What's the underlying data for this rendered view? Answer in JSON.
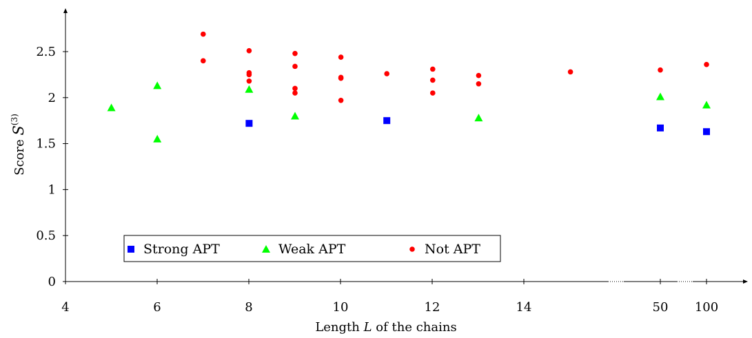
{
  "chart_data": {
    "type": "scatter",
    "xlabel": "Length L of the chains",
    "ylabel": "Score S(3)",
    "ylabel_parts": {
      "prefix": "Score ",
      "symbol": "S",
      "superscript": "(3)"
    },
    "xlabel_parts": {
      "before": "Length ",
      "var": "L",
      "after": " of the chains"
    },
    "xlim": [
      4,
      100
    ],
    "ylim": [
      0,
      2.8
    ],
    "x_ticks": [
      "4",
      "6",
      "8",
      "10",
      "12",
      "14",
      "50",
      "100"
    ],
    "y_ticks": [
      "0",
      "0.5",
      "1",
      "1.5",
      "2",
      "2.5"
    ],
    "x_axis_breaks": "broken axis between 14 and 50, and between 50 and 100",
    "grid": false,
    "legend_position": "bottom-left",
    "series": [
      {
        "name": "Strong APT",
        "marker": "square",
        "color": "#0000ff",
        "points": [
          [
            8,
            1.72
          ],
          [
            11,
            1.75
          ],
          [
            50,
            1.67
          ],
          [
            100,
            1.63
          ]
        ]
      },
      {
        "name": "Weak APT",
        "marker": "triangle",
        "color": "#00ff00",
        "points": [
          [
            5,
            1.89
          ],
          [
            6,
            2.13
          ],
          [
            6,
            1.55
          ],
          [
            8,
            2.09
          ],
          [
            9,
            1.8
          ],
          [
            13,
            1.78
          ],
          [
            50,
            2.01
          ],
          [
            100,
            1.92
          ]
        ]
      },
      {
        "name": "Not APT",
        "marker": "circle",
        "color": "#ff0000",
        "points": [
          [
            7,
            2.69
          ],
          [
            7,
            2.4
          ],
          [
            8,
            2.51
          ],
          [
            8,
            2.27
          ],
          [
            8,
            2.25
          ],
          [
            8,
            2.18
          ],
          [
            9,
            2.48
          ],
          [
            9,
            2.34
          ],
          [
            9,
            2.1
          ],
          [
            9,
            2.05
          ],
          [
            10,
            2.44
          ],
          [
            10,
            2.22
          ],
          [
            10,
            2.21
          ],
          [
            10,
            1.97
          ],
          [
            11,
            2.26
          ],
          [
            12,
            2.31
          ],
          [
            12,
            2.19
          ],
          [
            12,
            2.05
          ],
          [
            13,
            2.24
          ],
          [
            13,
            2.15
          ],
          [
            15,
            2.28
          ],
          [
            50,
            2.3
          ],
          [
            100,
            2.36
          ]
        ]
      }
    ]
  }
}
